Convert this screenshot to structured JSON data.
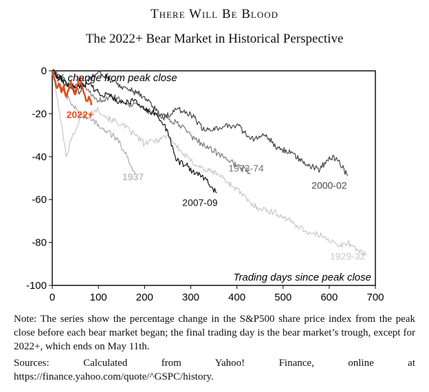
{
  "header": {
    "title": "There Will Be Blood",
    "subtitle": "The 2022+ Bear Market in Historical Perspective"
  },
  "notes": {
    "note": "Note: The series show the percentage change in the S&P500 share price index from the peak close before each bear market began; the final trading day is the bear market’s trough, except for 2022+, which ends on May 11th.",
    "sources": "Sources: Calculated from Yahoo! Finance, online at https://finance.yahoo.com/quote/^GSPC/history."
  },
  "chart_data": {
    "type": "line",
    "ylabel": "% change from peak close",
    "xlabel": "Trading days since peak close",
    "xlim": [
      0,
      700
    ],
    "ylim": [
      -100,
      0
    ],
    "xticks": [
      0,
      100,
      200,
      300,
      400,
      500,
      600,
      700
    ],
    "yticks": [
      0,
      -20,
      -40,
      -60,
      -80,
      -100
    ],
    "grid": false,
    "legend": "none (series labelled directly)",
    "series": [
      {
        "name": "1929-32",
        "color": "#c8c8c8",
        "x": [
          0,
          10,
          20,
          30,
          40,
          50,
          60,
          80,
          100,
          120,
          150,
          180,
          200,
          230,
          250,
          280,
          300,
          330,
          360,
          380,
          400,
          430,
          450,
          480,
          500,
          530,
          560,
          590,
          620,
          640,
          660,
          680
        ],
        "y": [
          0,
          -12,
          -25,
          -40,
          -32,
          -28,
          -22,
          -20,
          -18,
          -22,
          -25,
          -30,
          -34,
          -32,
          -30,
          -38,
          -42,
          -46,
          -48,
          -52,
          -55,
          -62,
          -64,
          -66,
          -68,
          -72,
          -76,
          -77,
          -82,
          -80,
          -83,
          -86
        ]
      },
      {
        "name": "1937",
        "color": "#aaaaaa",
        "x": [
          0,
          20,
          40,
          60,
          80,
          100,
          120,
          140,
          160,
          170,
          180
        ],
        "y": [
          0,
          -8,
          -15,
          -20,
          -22,
          -25,
          -28,
          -32,
          -38,
          -44,
          -48
        ]
      },
      {
        "name": "1973-74",
        "color": "#777777",
        "x": [
          0,
          20,
          40,
          60,
          80,
          100,
          130,
          160,
          190,
          220,
          250,
          280,
          310,
          340,
          370,
          400,
          430
        ],
        "y": [
          0,
          -4,
          -8,
          -6,
          -10,
          -14,
          -12,
          -15,
          -17,
          -20,
          -22,
          -26,
          -32,
          -36,
          -40,
          -44,
          -48
        ]
      },
      {
        "name": "2000-02",
        "color": "#444444",
        "x": [
          0,
          20,
          40,
          60,
          80,
          100,
          130,
          160,
          200,
          240,
          270,
          300,
          330,
          370,
          400,
          430,
          460,
          490,
          520,
          550,
          580,
          600,
          620,
          640
        ],
        "y": [
          0,
          -5,
          -8,
          -10,
          -4,
          0,
          -5,
          -8,
          -12,
          -22,
          -18,
          -20,
          -28,
          -26,
          -25,
          -32,
          -30,
          -36,
          -38,
          -44,
          -46,
          -40,
          -42,
          -49
        ]
      },
      {
        "name": "2007-09",
        "color": "#111111",
        "x": [
          0,
          25,
          50,
          75,
          100,
          125,
          150,
          175,
          200,
          225,
          250,
          270,
          290,
          310,
          330,
          356
        ],
        "y": [
          0,
          -5,
          -8,
          -6,
          -10,
          -12,
          -15,
          -14,
          -18,
          -20,
          -28,
          -42,
          -44,
          -48,
          -50,
          -57
        ]
      },
      {
        "name": "2022+",
        "color": "#e05020",
        "x": [
          0,
          5,
          10,
          15,
          20,
          25,
          30,
          35,
          40,
          45,
          50,
          55,
          60,
          65,
          70,
          75,
          80,
          85
        ],
        "y": [
          0,
          -4,
          -8,
          -6,
          -10,
          -7,
          -12,
          -9,
          -5,
          -8,
          -11,
          -6,
          -3,
          -7,
          -11,
          -14,
          -12,
          -16
        ]
      }
    ],
    "annotations": [
      {
        "text": "2022+",
        "x": 60,
        "y": -22
      },
      {
        "text": "1937",
        "x": 175,
        "y": -51
      },
      {
        "text": "1973-74",
        "x": 420,
        "y": -47
      },
      {
        "text": "2000-02",
        "x": 600,
        "y": -55
      },
      {
        "text": "2007-09",
        "x": 320,
        "y": -63
      },
      {
        "text": "1929-32",
        "x": 640,
        "y": -88
      }
    ]
  }
}
